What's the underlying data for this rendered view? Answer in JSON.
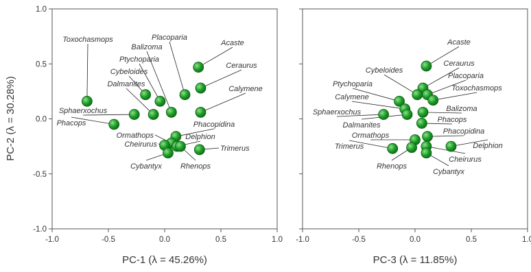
{
  "chart_data": [
    {
      "type": "scatter",
      "xlabel": "PC-1 (λ = 45.26%)",
      "ylabel": "PC-2 (λ = 30.28%)",
      "xlim": [
        -1.0,
        1.0
      ],
      "ylim": [
        -1.0,
        1.0
      ],
      "xticks": [
        "-1.0",
        "-0.5",
        "0.0",
        "0.5",
        "1.0"
      ],
      "yticks": [
        "1.0",
        "0.5",
        "0.0",
        "-0.5",
        "-1.0"
      ],
      "grid": false,
      "points": [
        {
          "label": "Toxochasmops",
          "x": -0.69,
          "y": 0.16
        },
        {
          "label": "Acaste",
          "x": 0.3,
          "y": 0.47
        },
        {
          "label": "Placoparia",
          "x": 0.18,
          "y": 0.22
        },
        {
          "label": "Balizoma",
          "x": 0.06,
          "y": 0.06
        },
        {
          "label": "Ptychoparia",
          "x": -0.04,
          "y": 0.16
        },
        {
          "label": "Cybeloides",
          "x": -0.17,
          "y": 0.22
        },
        {
          "label": "Dalmanites",
          "x": -0.1,
          "y": 0.04
        },
        {
          "label": "Ceraurus",
          "x": 0.32,
          "y": 0.28
        },
        {
          "label": "Calymene",
          "x": 0.32,
          "y": 0.06
        },
        {
          "label": "Sphaerxochus",
          "x": -0.27,
          "y": 0.04
        },
        {
          "label": "Phacops",
          "x": -0.45,
          "y": -0.05
        },
        {
          "label": "Phacopidina",
          "x": 0.1,
          "y": -0.16
        },
        {
          "label": "Ormathops",
          "x": 0.06,
          "y": -0.22
        },
        {
          "label": "Delphion",
          "x": 0.11,
          "y": -0.25
        },
        {
          "label": "Cheirurus",
          "x": 0.0,
          "y": -0.24
        },
        {
          "label": "Trimerus",
          "x": 0.31,
          "y": -0.28
        },
        {
          "label": "Cybantyx",
          "x": 0.03,
          "y": -0.31
        },
        {
          "label": "Rhenops",
          "x": 0.14,
          "y": -0.25
        }
      ]
    },
    {
      "type": "scatter",
      "xlabel": "PC-3 (λ = 11.85%)",
      "ylabel": "",
      "xlim": [
        -1.0,
        1.0
      ],
      "ylim": [
        -1.0,
        1.0
      ],
      "xticks": [
        "-1.0",
        "-0.5",
        "0.0",
        "0.5",
        "1.0"
      ],
      "yticks": [],
      "grid": false,
      "points": [
        {
          "label": "Acaste",
          "x": 0.1,
          "y": 0.48
        },
        {
          "label": "Ceraurus",
          "x": 0.07,
          "y": 0.28
        },
        {
          "label": "Cybeloides",
          "x": 0.02,
          "y": 0.22
        },
        {
          "label": "Placoparia",
          "x": 0.11,
          "y": 0.22
        },
        {
          "label": "Toxochasmops",
          "x": 0.16,
          "y": 0.17
        },
        {
          "label": "Ptychoparia",
          "x": -0.14,
          "y": 0.16
        },
        {
          "label": "Calymene",
          "x": -0.09,
          "y": 0.09
        },
        {
          "label": "Balizoma",
          "x": 0.07,
          "y": 0.06
        },
        {
          "label": "Sphaerxochus",
          "x": -0.28,
          "y": 0.04
        },
        {
          "label": "Dalmanites",
          "x": -0.07,
          "y": 0.04
        },
        {
          "label": "Phacops",
          "x": 0.06,
          "y": -0.04
        },
        {
          "label": "Phacopidina",
          "x": 0.11,
          "y": -0.16
        },
        {
          "label": "Ormathops",
          "x": 0.0,
          "y": -0.19
        },
        {
          "label": "Trimerus",
          "x": -0.2,
          "y": -0.27
        },
        {
          "label": "Rhenops",
          "x": -0.03,
          "y": -0.26
        },
        {
          "label": "Cheirurus",
          "x": 0.1,
          "y": -0.25
        },
        {
          "label": "Delphion",
          "x": 0.32,
          "y": -0.25
        },
        {
          "label": "Cybantyx",
          "x": 0.1,
          "y": -0.31
        }
      ]
    }
  ],
  "colors": {
    "point_fill": "#1f9e2a",
    "point_highlight": "#8fe08a",
    "point_stroke": "#0b5e12",
    "axis": "#555555",
    "text": "#333333",
    "leader": "#222222"
  }
}
